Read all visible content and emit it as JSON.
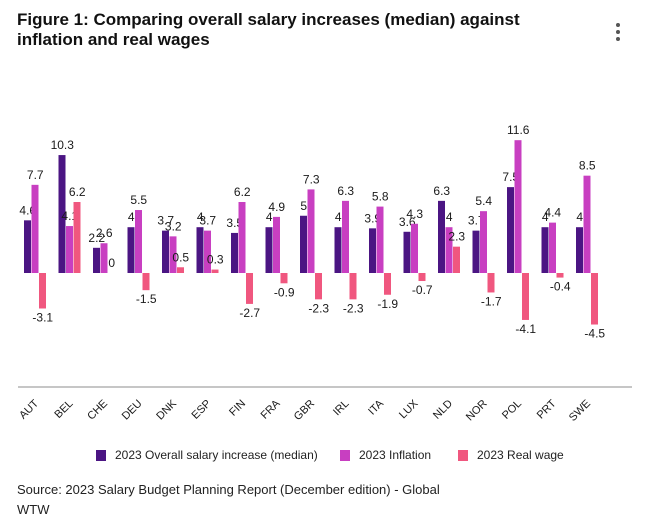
{
  "title": "Figure 1: Comparing overall salary increases (median) against inflation and real wages",
  "menu_icon": "more-vertical-icon",
  "colors": {
    "salary": "#4b1583",
    "inflation": "#c83fc1",
    "realwage": "#f0577f",
    "axis": "#888888",
    "text": "#1a1a1a"
  },
  "chart_data": {
    "type": "bar",
    "title": "Figure 1: Comparing overall salary increases (median) against inflation and real wages",
    "xlabel": "",
    "ylabel": "",
    "ylim": [
      -5,
      12
    ],
    "grid": false,
    "legend_position": "bottom",
    "categories": [
      "AUT",
      "BEL",
      "CHE",
      "DEU",
      "DNK",
      "ESP",
      "FIN",
      "FRA",
      "GBR",
      "IRL",
      "ITA",
      "LUX",
      "NLD",
      "NOR",
      "POL",
      "PRT",
      "SWE"
    ],
    "series": [
      {
        "name": "2023 Overall salary increase (median)",
        "color": "#4b1583",
        "values": [
          4.6,
          10.3,
          2.2,
          4,
          3.7,
          4,
          3.5,
          4,
          5,
          4,
          3.9,
          3.6,
          6.3,
          3.7,
          7.5,
          4,
          4
        ],
        "labels": [
          "4.6",
          "10.3",
          "2.2",
          "4",
          "3.7",
          "4",
          "3.5",
          "4",
          "5",
          "4",
          "3.9",
          "3.6",
          "6.3",
          "3.7",
          "7.5",
          "4",
          "4"
        ]
      },
      {
        "name": "2023 Inflation",
        "color": "#c83fc1",
        "values": [
          7.7,
          4.1,
          2.6,
          5.5,
          3.2,
          3.7,
          6.2,
          4.9,
          7.3,
          6.3,
          5.8,
          4.3,
          4,
          5.4,
          11.6,
          4.4,
          8.5
        ],
        "labels": [
          "7.7",
          "4.1",
          "2.6",
          "5.5",
          "3.2",
          "3.7",
          "6.2",
          "4.9",
          "7.3",
          "6.3",
          "5.8",
          "4.3",
          "4",
          "5.4",
          "11.6",
          "4.4",
          "8.5"
        ]
      },
      {
        "name": "2023 Real wage",
        "color": "#f0577f",
        "values": [
          -3.1,
          6.2,
          0,
          -1.5,
          0.5,
          0.3,
          -2.7,
          -0.9,
          -2.3,
          -2.3,
          -1.9,
          -0.7,
          2.3,
          -1.7,
          -4.1,
          -0.4,
          -4.5
        ],
        "labels": [
          "-3.1",
          "6.2",
          "0",
          "-1.5",
          "0.5",
          "0.3",
          "-2.7",
          "-0.9",
          "-2.3",
          "-2.3",
          "-1.9",
          "-0.7",
          "2.3",
          "-1.7",
          "-4.1",
          "-0.4",
          "-4.5"
        ]
      }
    ]
  },
  "legend": {
    "salary": "2023 Overall salary increase (median)",
    "inflation": "2023 Inflation",
    "realwage": "2023 Real wage"
  },
  "source": "Source: 2023 Salary Budget Planning Report (December edition) - Global",
  "org": "WTW"
}
